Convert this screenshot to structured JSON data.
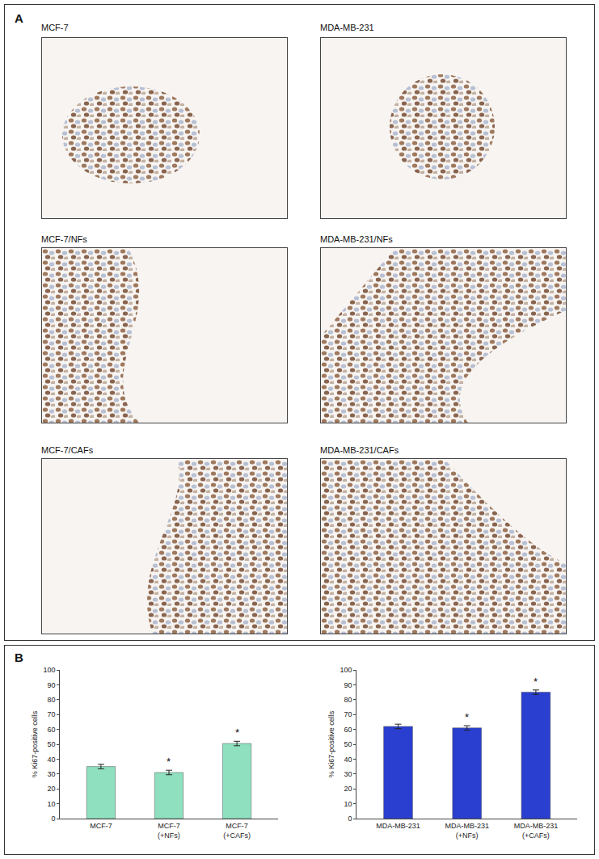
{
  "figure": {
    "panel_a": {
      "label": "A",
      "images": [
        {
          "label": "MCF-7"
        },
        {
          "label": "MDA-MB-231"
        },
        {
          "label": "MCF-7/NFs"
        },
        {
          "label": "MDA-MB-231/NFs"
        },
        {
          "label": "MCF-7/CAFs"
        },
        {
          "label": "MDA-MB-231/CAFs"
        }
      ]
    },
    "panel_b": {
      "label": "B"
    }
  },
  "chart_data": [
    {
      "type": "bar",
      "categories": [
        "MCF-7",
        "MCF-7 (+NFs)",
        "MCF-7 (+CAFs)"
      ],
      "values": [
        35,
        31,
        50.5
      ],
      "errors": [
        1.5,
        1.5,
        1.5
      ],
      "color": "#8ee0bf",
      "ylabel": "% Ki67-positive cells",
      "ylim": [
        0,
        100
      ],
      "yticks": [
        0,
        10,
        20,
        30,
        40,
        50,
        60,
        70,
        80,
        90,
        100
      ],
      "grid": false,
      "annotations": [
        {
          "category": "MCF-7 (+NFs)",
          "text": "*"
        },
        {
          "category": "MCF-7 (+CAFs)",
          "text": "*"
        }
      ]
    },
    {
      "type": "bar",
      "categories": [
        "MDA-MB-231",
        "MDA-MB-231 (+NFs)",
        "MDA-MB-231 (+CAFs)"
      ],
      "values": [
        62,
        61,
        85
      ],
      "errors": [
        1.5,
        1.5,
        1.5
      ],
      "color": "#2a3fd0",
      "ylabel": "% Ki67-positive cells",
      "ylim": [
        0,
        100
      ],
      "yticks": [
        0,
        10,
        20,
        30,
        40,
        50,
        60,
        70,
        80,
        90,
        100
      ],
      "grid": false,
      "annotations": [
        {
          "category": "MDA-MB-231 (+NFs)",
          "text": "*"
        },
        {
          "category": "MDA-MB-231 (+CAFs)",
          "text": "*"
        }
      ]
    }
  ]
}
